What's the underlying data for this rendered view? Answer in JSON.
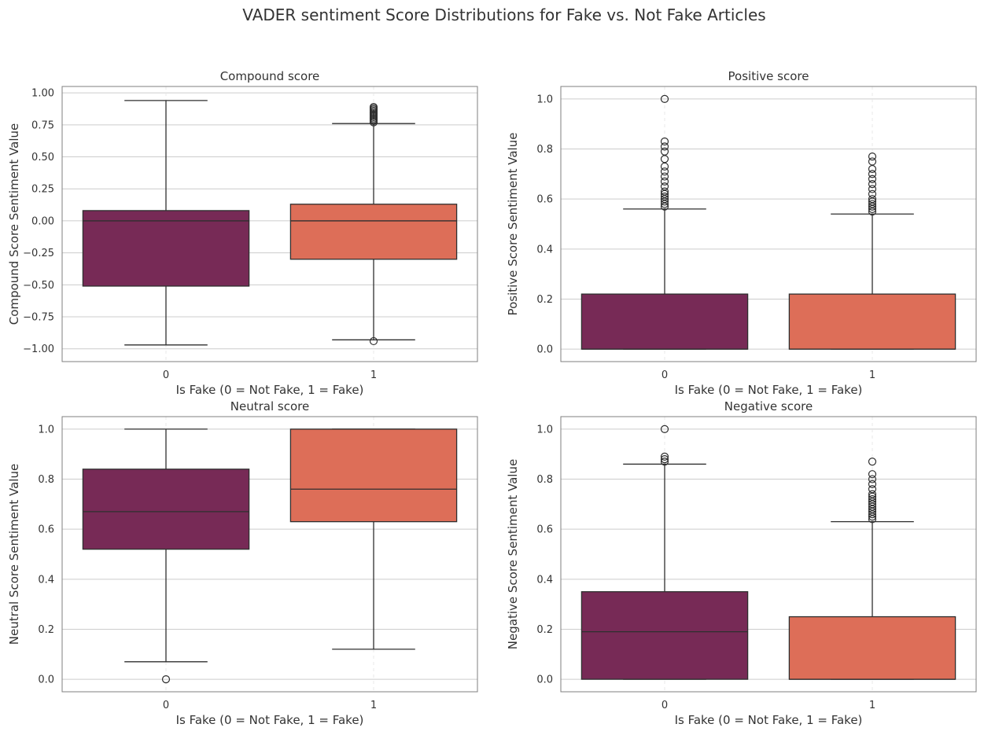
{
  "figure": {
    "title": "VADER sentiment Score Distributions for Fake vs. Not Fake Articles"
  },
  "colors": {
    "group0": "#772a56",
    "group1": "#dd6e58",
    "box_edge": "#2f2f2f",
    "grid": "#cccccc",
    "frame": "#7f7f7f",
    "text": "#333333"
  },
  "chart_data": [
    {
      "type": "box",
      "title": "Compound score",
      "xlabel": "Is Fake (0 = Not Fake, 1 = Fake)",
      "ylabel": "Compound Score Sentiment Value",
      "categories": [
        "0",
        "1"
      ],
      "ylim": [
        -1.1,
        1.05
      ],
      "yticks": [
        -1.0,
        -0.75,
        -0.5,
        -0.25,
        0.0,
        0.25,
        0.5,
        0.75,
        1.0
      ],
      "ytick_labels": [
        "−1.00",
        "−0.75",
        "−0.50",
        "−0.25",
        "0.00",
        "0.25",
        "0.50",
        "0.75",
        "1.00"
      ],
      "grid": true,
      "boxes": [
        {
          "category": "0",
          "whisker_low": -0.97,
          "q1": -0.51,
          "median": 0.0,
          "q3": 0.08,
          "whisker_high": 0.94,
          "outliers": []
        },
        {
          "category": "1",
          "whisker_low": -0.93,
          "q1": -0.3,
          "median": 0.0,
          "q3": 0.13,
          "whisker_high": 0.76,
          "outliers": [
            0.77,
            0.78,
            0.79,
            0.8,
            0.81,
            0.82,
            0.83,
            0.84,
            0.85,
            0.86,
            0.87,
            0.88,
            0.89,
            -0.94
          ]
        }
      ]
    },
    {
      "type": "box",
      "title": "Positive score",
      "xlabel": "Is Fake (0 = Not Fake, 1 = Fake)",
      "ylabel": "Positive Score Sentiment Value",
      "categories": [
        "0",
        "1"
      ],
      "ylim": [
        -0.05,
        1.05
      ],
      "yticks": [
        0.0,
        0.2,
        0.4,
        0.6,
        0.8,
        1.0
      ],
      "ytick_labels": [
        "0.0",
        "0.2",
        "0.4",
        "0.6",
        "0.8",
        "1.0"
      ],
      "grid": true,
      "boxes": [
        {
          "category": "0",
          "whisker_low": 0.0,
          "q1": 0.0,
          "median": 0.0,
          "q3": 0.22,
          "whisker_high": 0.56,
          "outliers": [
            0.57,
            0.58,
            0.59,
            0.6,
            0.61,
            0.62,
            0.63,
            0.65,
            0.67,
            0.69,
            0.71,
            0.73,
            0.76,
            0.79,
            0.81,
            0.83,
            1.0
          ]
        },
        {
          "category": "1",
          "whisker_low": 0.0,
          "q1": 0.0,
          "median": 0.0,
          "q3": 0.22,
          "whisker_high": 0.54,
          "outliers": [
            0.55,
            0.56,
            0.57,
            0.58,
            0.59,
            0.6,
            0.62,
            0.64,
            0.66,
            0.68,
            0.7,
            0.72,
            0.75,
            0.77
          ]
        }
      ]
    },
    {
      "type": "box",
      "title": "Neutral score",
      "xlabel": "Is Fake (0 = Not Fake, 1 = Fake)",
      "ylabel": "Neutral Score Sentiment Value",
      "categories": [
        "0",
        "1"
      ],
      "ylim": [
        -0.05,
        1.05
      ],
      "yticks": [
        0.0,
        0.2,
        0.4,
        0.6,
        0.8,
        1.0
      ],
      "ytick_labels": [
        "0.0",
        "0.2",
        "0.4",
        "0.6",
        "0.8",
        "1.0"
      ],
      "grid": true,
      "boxes": [
        {
          "category": "0",
          "whisker_low": 0.07,
          "q1": 0.52,
          "median": 0.67,
          "q3": 0.84,
          "whisker_high": 1.0,
          "outliers": [
            0.0
          ]
        },
        {
          "category": "1",
          "whisker_low": 0.12,
          "q1": 0.63,
          "median": 0.76,
          "q3": 1.0,
          "whisker_high": 1.0,
          "outliers": []
        }
      ]
    },
    {
      "type": "box",
      "title": "Negative score",
      "xlabel": "Is Fake (0 = Not Fake, 1 = Fake)",
      "ylabel": "Negative Score Sentiment Value",
      "categories": [
        "0",
        "1"
      ],
      "ylim": [
        -0.05,
        1.05
      ],
      "yticks": [
        0.0,
        0.2,
        0.4,
        0.6,
        0.8,
        1.0
      ],
      "ytick_labels": [
        "0.0",
        "0.2",
        "0.4",
        "0.6",
        "0.8",
        "1.0"
      ],
      "grid": true,
      "boxes": [
        {
          "category": "0",
          "whisker_low": 0.0,
          "q1": 0.0,
          "median": 0.19,
          "q3": 0.35,
          "whisker_high": 0.86,
          "outliers": [
            0.87,
            0.88,
            0.89,
            1.0
          ]
        },
        {
          "category": "1",
          "whisker_low": 0.0,
          "q1": 0.0,
          "median": 0.0,
          "q3": 0.25,
          "whisker_high": 0.63,
          "outliers": [
            0.64,
            0.65,
            0.66,
            0.67,
            0.68,
            0.69,
            0.7,
            0.71,
            0.72,
            0.73,
            0.74,
            0.76,
            0.78,
            0.8,
            0.82,
            0.87
          ]
        }
      ]
    }
  ]
}
